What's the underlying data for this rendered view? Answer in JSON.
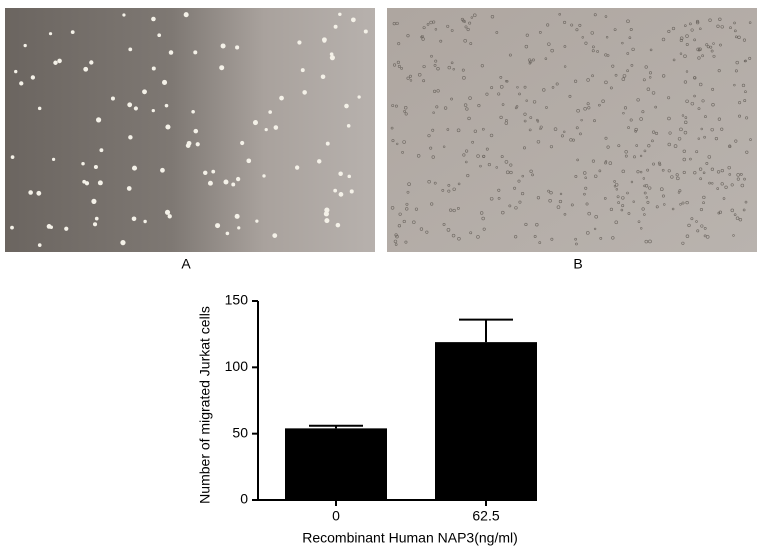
{
  "panels": {
    "a": "A",
    "b": "B"
  },
  "chart_data": {
    "type": "bar",
    "y_label": "Number of migrated Jurkat cells",
    "x_label": "Recombinant Human NAP3(ng/ml)",
    "categories": [
      "0",
      "62.5"
    ],
    "values": [
      54,
      119
    ],
    "errors": [
      2,
      17
    ],
    "color": "#000000",
    "ylim": [
      0,
      150
    ],
    "yticks": [
      0,
      50,
      100,
      150
    ]
  }
}
